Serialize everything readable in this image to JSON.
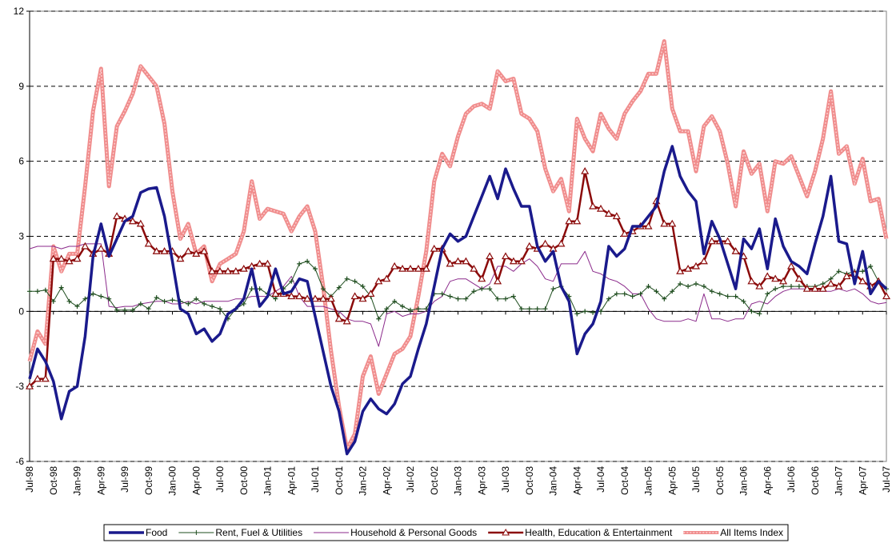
{
  "chart_data": {
    "type": "line",
    "categories": [
      "Jul-98",
      null,
      null,
      "Oct-98",
      null,
      null,
      "Jan-99",
      null,
      null,
      "Apr-99",
      null,
      null,
      "Jul-99",
      null,
      null,
      "Oct-99",
      null,
      null,
      "Jan-00",
      null,
      null,
      "Apr-00",
      null,
      null,
      "Jul-00",
      null,
      null,
      "Oct-00",
      null,
      null,
      "Jan-01",
      null,
      null,
      "Apr-01",
      null,
      null,
      "Jul-01",
      null,
      null,
      "Oct-01",
      null,
      null,
      "Jan-02",
      null,
      null,
      "Apr-02",
      null,
      null,
      "Jul-02",
      null,
      null,
      "Oct-02",
      null,
      null,
      "Jan-03",
      null,
      null,
      "Apr-03",
      null,
      null,
      "Jul-03",
      null,
      null,
      "Oct-03",
      null,
      null,
      "Jan-04",
      null,
      null,
      "Apr-04",
      null,
      null,
      "Jul-04",
      null,
      null,
      "Oct-04",
      null,
      null,
      "Jan-05",
      null,
      null,
      "Apr-05",
      null,
      null,
      "Jul-05",
      null,
      null,
      "Oct-05",
      null,
      null,
      "Jan-06",
      null,
      null,
      "Apr-06",
      null,
      null,
      "Jul-06",
      null,
      null,
      "Oct-06",
      null,
      null,
      "Jan-07",
      null,
      null,
      "Apr-07",
      null,
      null,
      "Jul-07"
    ],
    "series": [
      {
        "name": "Food",
        "color": "#1a1a8c",
        "marker": null,
        "values": [
          -2.7,
          -1.5,
          -2.0,
          -2.8,
          -4.3,
          -3.2,
          -3.0,
          -1.0,
          2.2,
          3.5,
          2.2,
          2.9,
          3.6,
          3.8,
          4.75,
          4.9,
          4.95,
          3.8,
          2.0,
          0.1,
          -0.1,
          -0.9,
          -0.7,
          -1.2,
          -0.9,
          -0.1,
          0.1,
          0.5,
          1.7,
          0.2,
          0.6,
          1.7,
          0.7,
          0.8,
          1.3,
          1.2,
          -0.2,
          -1.6,
          -3.0,
          -4.0,
          -5.7,
          -5.2,
          -4.0,
          -3.5,
          -3.9,
          -4.1,
          -3.7,
          -2.9,
          -2.6,
          -1.5,
          -0.5,
          1.0,
          2.5,
          3.1,
          2.8,
          3.0,
          3.8,
          4.6,
          5.4,
          4.5,
          5.7,
          4.9,
          4.2,
          4.2,
          2.6,
          2.0,
          2.4,
          1.0,
          0.4,
          -1.7,
          -0.9,
          -0.5,
          0.4,
          2.6,
          2.2,
          2.5,
          3.4,
          3.4,
          3.8,
          4.2,
          5.6,
          6.6,
          5.4,
          4.8,
          4.4,
          2.3,
          3.6,
          2.9,
          1.9,
          0.9,
          2.9,
          2.5,
          3.3,
          1.7,
          3.7,
          2.6,
          2.0,
          1.8,
          1.5,
          2.7,
          3.8,
          5.4,
          2.8,
          2.7,
          1.1,
          2.4,
          0.7,
          1.2,
          0.9
        ]
      },
      {
        "name": "Rent, Fuel & Utilities",
        "color": "#1e4d1e",
        "marker": "plus",
        "values": [
          0.8,
          0.8,
          0.85,
          0.4,
          0.95,
          0.4,
          0.2,
          0.5,
          0.7,
          0.6,
          0.5,
          0.05,
          0.05,
          0.05,
          0.3,
          0.1,
          0.55,
          0.4,
          0.45,
          0.4,
          0.3,
          0.5,
          0.3,
          0.2,
          0.1,
          -0.3,
          0.1,
          0.3,
          0.9,
          0.9,
          0.7,
          0.5,
          0.9,
          1.2,
          1.9,
          2.0,
          1.7,
          0.9,
          0.6,
          0.95,
          1.3,
          1.2,
          1.0,
          0.6,
          -0.3,
          0.1,
          0.4,
          0.2,
          0.05,
          0.1,
          0.1,
          0.7,
          0.7,
          0.6,
          0.5,
          0.5,
          0.8,
          0.9,
          0.9,
          0.5,
          0.5,
          0.6,
          0.1,
          0.1,
          0.1,
          0.1,
          0.9,
          1.0,
          0.6,
          -0.1,
          0.0,
          -0.05,
          0.0,
          0.5,
          0.7,
          0.7,
          0.6,
          0.7,
          1.0,
          0.8,
          0.5,
          0.8,
          1.1,
          1.0,
          1.1,
          1.0,
          0.8,
          0.7,
          0.6,
          0.6,
          0.4,
          0.0,
          -0.1,
          0.7,
          0.9,
          1.0,
          1.0,
          1.0,
          1.0,
          1.0,
          1.1,
          1.3,
          1.6,
          1.5,
          1.6,
          1.6,
          1.8,
          1.2,
          0.9
        ]
      },
      {
        "name": "Household & Personal Goods",
        "color": "#8b2a8b",
        "marker": null,
        "values": [
          2.5,
          2.6,
          2.6,
          2.6,
          2.5,
          2.6,
          2.6,
          2.7,
          2.7,
          2.7,
          0.2,
          0.15,
          0.2,
          0.2,
          0.3,
          0.35,
          0.4,
          0.4,
          0.3,
          0.3,
          0.4,
          0.3,
          0.4,
          0.4,
          0.4,
          0.4,
          0.5,
          0.5,
          0.6,
          0.6,
          0.6,
          0.8,
          1.0,
          1.4,
          0.6,
          0.2,
          0.2,
          0.2,
          0.1,
          0.0,
          -0.3,
          -0.4,
          -0.4,
          -0.5,
          -1.4,
          -0.1,
          0.0,
          -0.2,
          -0.1,
          -0.1,
          0.0,
          0.4,
          0.6,
          1.2,
          1.3,
          1.3,
          1.1,
          0.9,
          1.1,
          1.8,
          1.8,
          1.6,
          1.9,
          2.1,
          1.8,
          1.3,
          1.2,
          1.9,
          1.9,
          1.9,
          2.4,
          1.6,
          1.5,
          1.3,
          1.2,
          1.0,
          0.7,
          0.7,
          0.1,
          -0.3,
          -0.4,
          -0.4,
          -0.4,
          -0.3,
          -0.4,
          0.7,
          -0.3,
          -0.3,
          -0.4,
          -0.3,
          -0.3,
          0.3,
          0.4,
          0.3,
          0.6,
          0.8,
          0.9,
          0.9,
          0.9,
          0.8,
          0.8,
          0.8,
          0.9,
          0.8,
          0.9,
          0.7,
          0.4,
          0.3,
          0.35
        ]
      },
      {
        "name": "Health, Education & Entertainment",
        "color": "#8b0a0a",
        "marker": "triangle",
        "values": [
          -3.0,
          -2.7,
          -2.7,
          2.1,
          2.1,
          2.0,
          2.1,
          2.6,
          2.3,
          2.5,
          2.3,
          3.8,
          3.7,
          3.6,
          3.5,
          2.7,
          2.4,
          2.4,
          2.4,
          2.1,
          2.4,
          2.3,
          2.4,
          1.6,
          1.6,
          1.6,
          1.6,
          1.7,
          1.8,
          1.9,
          1.9,
          0.7,
          0.7,
          0.6,
          0.6,
          0.5,
          0.5,
          0.5,
          0.5,
          -0.3,
          -0.4,
          0.6,
          0.5,
          0.7,
          1.2,
          1.3,
          1.8,
          1.7,
          1.7,
          1.7,
          1.7,
          2.5,
          2.5,
          1.9,
          2.0,
          2.0,
          1.7,
          1.3,
          2.2,
          1.2,
          2.2,
          2.0,
          2.0,
          2.6,
          2.5,
          2.7,
          2.5,
          2.7,
          3.6,
          3.6,
          5.6,
          4.2,
          4.1,
          3.9,
          3.8,
          3.1,
          3.2,
          3.4,
          3.4,
          4.4,
          3.5,
          3.5,
          1.6,
          1.7,
          1.8,
          2.0,
          2.8,
          2.8,
          2.8,
          2.4,
          2.2,
          1.2,
          1.0,
          1.4,
          1.3,
          1.2,
          1.8,
          1.3,
          0.9,
          0.9,
          0.9,
          1.1,
          1.0,
          1.4,
          1.5,
          1.2,
          1.0,
          1.2,
          0.6
        ]
      },
      {
        "name": "All Items Index",
        "color": "#f08c8c",
        "marker": null,
        "values": [
          -2.0,
          -0.8,
          -1.3,
          2.6,
          1.6,
          2.3,
          2.3,
          5.0,
          8.0,
          9.7,
          5.0,
          7.4,
          8.0,
          8.7,
          9.8,
          9.4,
          9.0,
          7.5,
          4.8,
          2.9,
          3.5,
          2.3,
          2.6,
          1.2,
          1.9,
          2.1,
          2.3,
          3.2,
          5.2,
          3.7,
          4.1,
          4.0,
          3.9,
          3.2,
          3.8,
          4.2,
          3.2,
          1.0,
          -1.6,
          -3.8,
          -5.5,
          -4.9,
          -2.6,
          -1.8,
          -3.3,
          -2.5,
          -1.7,
          -1.5,
          -1.0,
          0.6,
          2.4,
          5.2,
          6.3,
          5.8,
          7.0,
          7.9,
          8.2,
          8.3,
          8.1,
          9.6,
          9.2,
          9.3,
          7.9,
          7.7,
          7.2,
          5.7,
          4.8,
          5.3,
          4.0,
          7.7,
          6.9,
          6.4,
          7.9,
          7.3,
          6.9,
          7.9,
          8.4,
          8.8,
          9.5,
          9.5,
          10.8,
          8.1,
          7.2,
          7.2,
          5.6,
          7.4,
          7.8,
          7.2,
          5.9,
          4.2,
          6.4,
          5.5,
          5.9,
          4.0,
          6.0,
          5.9,
          6.2,
          5.4,
          4.6,
          5.6,
          6.9,
          8.8,
          6.3,
          6.6,
          5.1,
          6.1,
          4.4,
          4.5,
          2.9
        ]
      }
    ],
    "ylim": [
      -6,
      12
    ],
    "yticks": [
      -6,
      -3,
      0,
      3,
      6,
      9,
      12
    ],
    "grid": true,
    "legend_position": "bottom"
  }
}
